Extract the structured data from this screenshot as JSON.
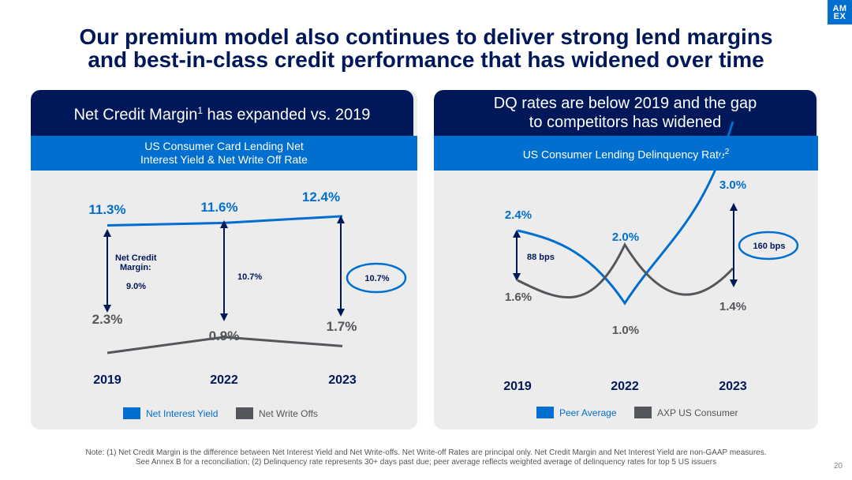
{
  "logo_text": [
    "AM",
    "EX"
  ],
  "title_line1": "Our premium model also continues to deliver strong lend margins",
  "title_line2": "and best-in-class credit performance that has widened over time",
  "left_panel": {
    "header_text": "Net Credit Margin",
    "header_sup": "1",
    "header_suffix": " has expanded vs. 2019",
    "subheader_line1": "US Consumer Card Lending Net",
    "subheader_line2": "Interest Yield & Net Write Off Rate"
  },
  "right_panel": {
    "header_line1": "DQ rates are below 2019 and the gap",
    "header_line2": "to competitors has widened",
    "subheader_text": "US Consumer Lending Delinquency Rate",
    "subheader_sup": "2"
  },
  "colors": {
    "navy": "#00175a",
    "blue": "#006fcf",
    "gray": "#53565a",
    "panel": "#ececec"
  },
  "chart_data": [
    {
      "type": "line",
      "title": "US Consumer Card Lending Net Interest Yield & Net Write Off Rate",
      "x": [
        "2019",
        "2022",
        "2023"
      ],
      "ylim": [
        0,
        14
      ],
      "series": [
        {
          "name": "Net Interest Yield",
          "values": [
            11.3,
            11.6,
            12.4
          ],
          "labels": [
            "11.3%",
            "11.6%",
            "12.4%"
          ],
          "color": "#006fcf"
        },
        {
          "name": "Net Write Offs",
          "values": [
            2.3,
            0.9,
            1.7
          ],
          "labels": [
            "2.3%",
            "0.9%",
            "1.7%"
          ],
          "color": "#53565a"
        }
      ],
      "spreads": [
        {
          "label": "9.0%",
          "caption": [
            "Net Credit",
            "Margin:"
          ]
        },
        {
          "label": "10.7%"
        },
        {
          "label": "10.7%",
          "highlighted": true
        }
      ]
    },
    {
      "type": "line",
      "title": "US Consumer Lending Delinquency Rate",
      "x": [
        "2019",
        "2022",
        "2023"
      ],
      "ylim": [
        0,
        3.5
      ],
      "series": [
        {
          "name": "Peer Average",
          "values": [
            2.4,
            2.0,
            3.0
          ],
          "labels": [
            "2.4%",
            "2.0%",
            "3.0%"
          ],
          "color": "#006fcf"
        },
        {
          "name": "AXP US Consumer",
          "values": [
            1.6,
            1.0,
            1.4
          ],
          "labels": [
            "1.6%",
            "1.0%",
            "1.4%"
          ],
          "color": "#53565a"
        }
      ],
      "gaps": [
        {
          "label": "88 bps"
        },
        {
          "label": "160 bps",
          "highlighted": true
        }
      ]
    }
  ],
  "note_line1": "Note: (1) Net Credit Margin is the difference between Net Interest Yield and Net Write-offs. Net Write-off Rates are principal only. Net Credit Margin and Net Interest Yield are non-GAAP measures.",
  "note_line2": "See Annex B  for a reconciliation; (2) Delinquency rate represents 30+ days past due;  peer average reflects weighted average of delinquency rates for top 5 US issuers",
  "page_number": "20"
}
